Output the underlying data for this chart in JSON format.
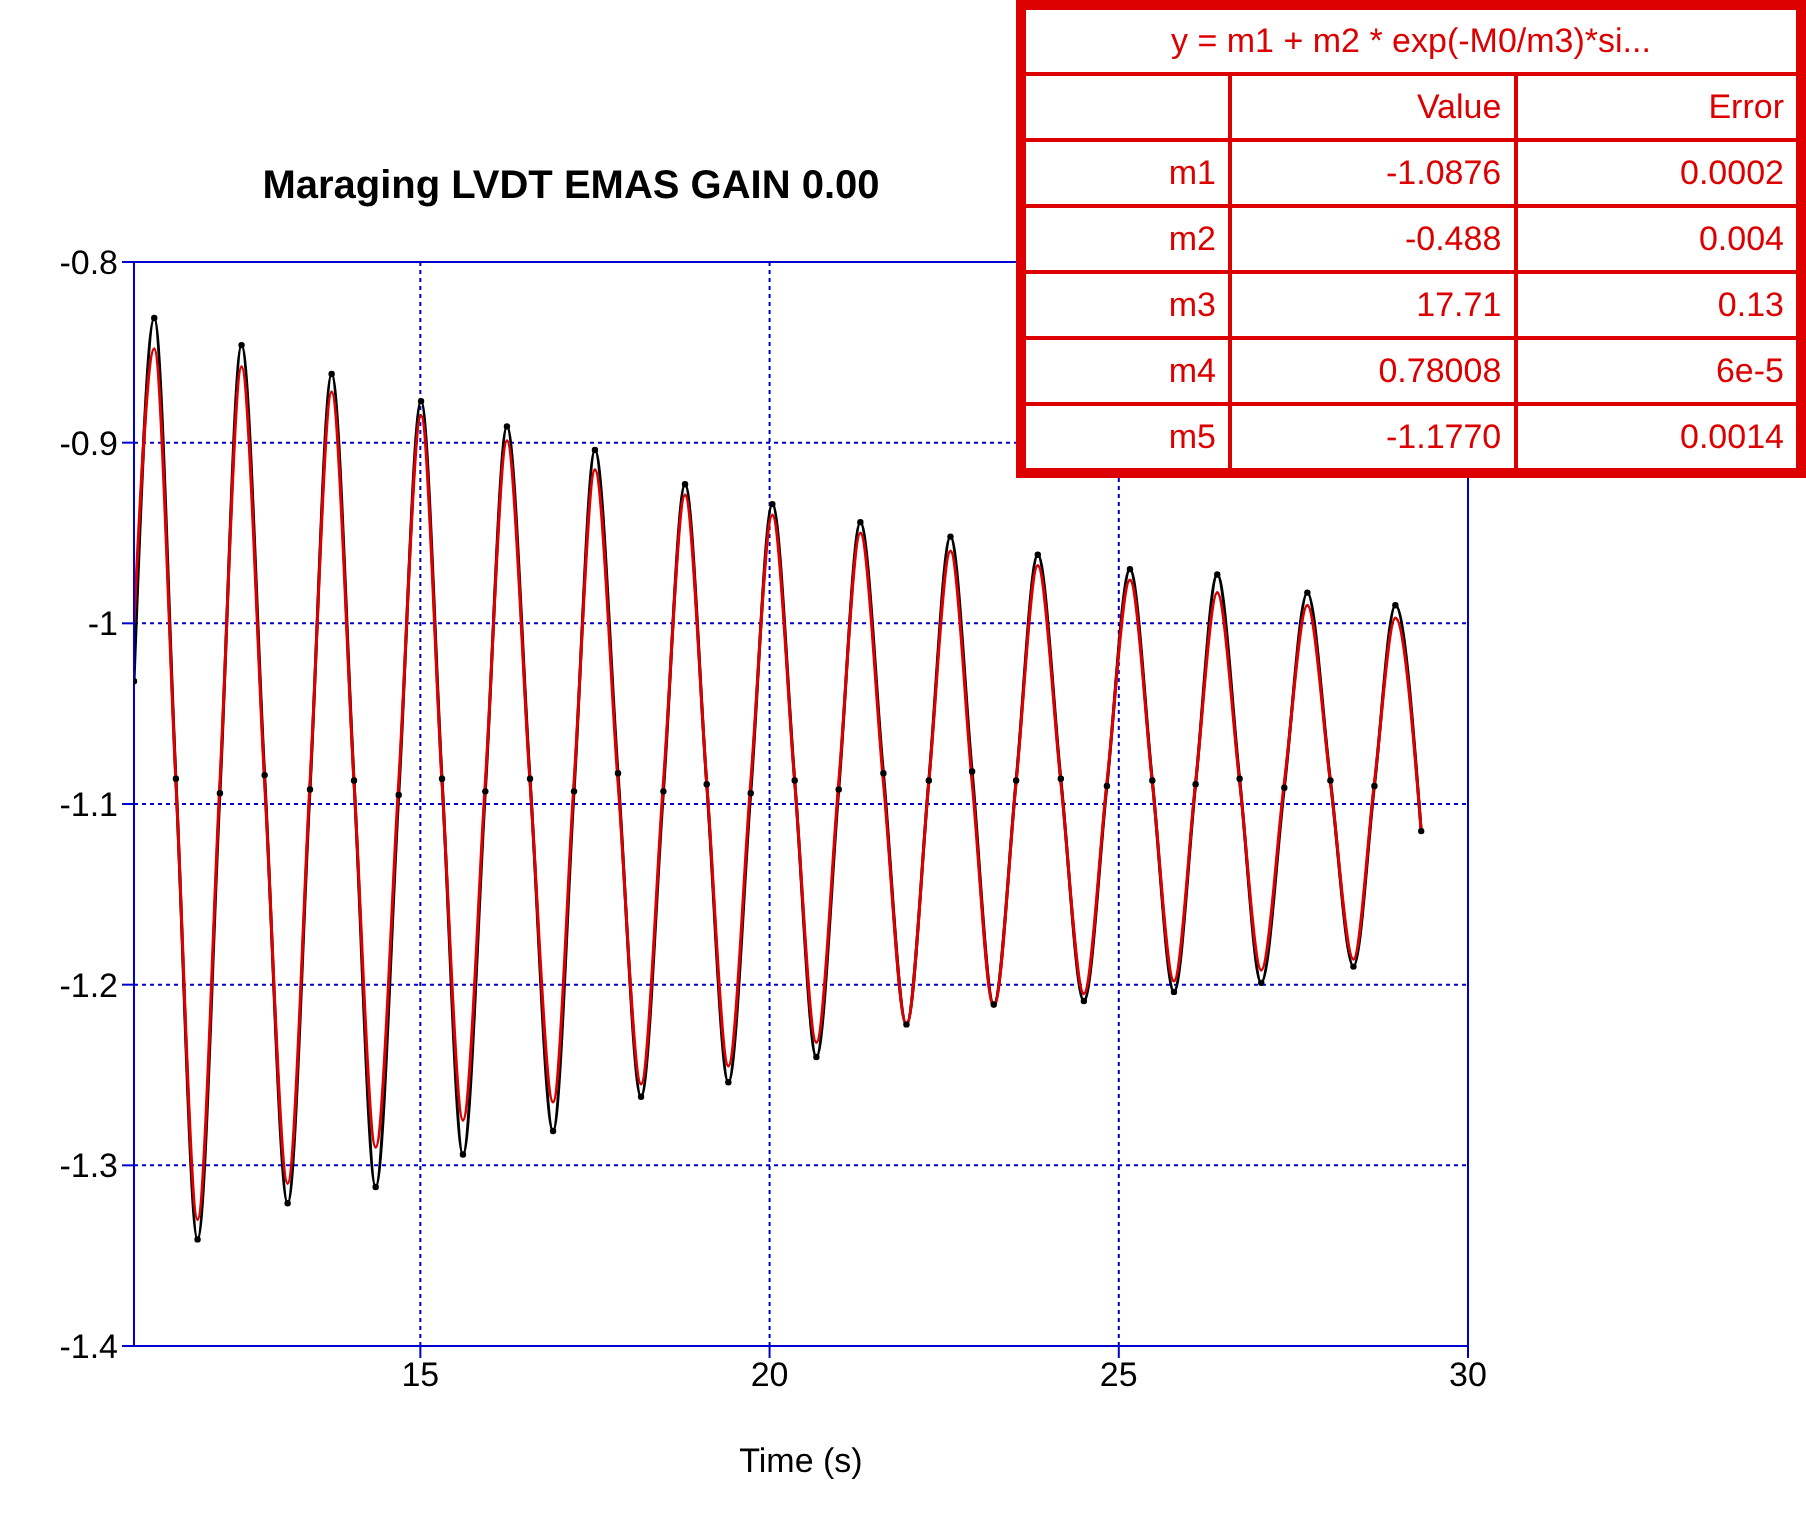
{
  "chart_data": {
    "type": "line",
    "title": "Maraging LVDT EMAS GAIN 0.00",
    "xlabel": "Time (s)",
    "xlim": [
      10.9,
      30
    ],
    "xticks": [
      15,
      20,
      25,
      30
    ],
    "ylim": [
      -1.4,
      -0.8
    ],
    "yticks": [
      -0.8,
      -0.9,
      -1,
      -1.1,
      -1.2,
      -1.3,
      -1.4
    ],
    "grid": true,
    "line_style": "solid",
    "annotations": [
      "y = m1 + m2 * exp(-M0/m3)*si...",
      "Value",
      "Error",
      "m1",
      "-1.0876",
      "0.0002",
      "m2",
      "-0.488",
      "0.004",
      "m3",
      "17.71",
      "0.13",
      "m4",
      "0.78008",
      "6e-5",
      "m5",
      "-1.1770",
      "0.0014"
    ],
    "series": [
      {
        "color": "#000000",
        "marker": "circle",
        "x": [
          10.9,
          11.19,
          11.5,
          11.81,
          12.13,
          12.44,
          12.77,
          13.1,
          13.42,
          13.73,
          14.05,
          14.36,
          14.69,
          15.01,
          15.31,
          15.61,
          15.93,
          16.24,
          16.57,
          16.9,
          17.2,
          17.5,
          17.83,
          18.16,
          18.48,
          18.79,
          19.1,
          19.41,
          19.73,
          20.04,
          20.36,
          20.67,
          20.99,
          21.3,
          21.63,
          21.96,
          22.28,
          22.59,
          22.9,
          23.21,
          23.53,
          23.84,
          24.17,
          24.5,
          24.83,
          25.16,
          25.48,
          25.79,
          26.1,
          26.41,
          26.73,
          27.04,
          27.37,
          27.7,
          28.03,
          28.36,
          28.66,
          28.96,
          29.33
        ],
        "values": [
          -1.032,
          -0.831,
          -1.086,
          -1.341,
          -1.094,
          -0.846,
          -1.084,
          -1.321,
          -1.092,
          -0.862,
          -1.087,
          -1.312,
          -1.095,
          -0.877,
          -1.086,
          -1.294,
          -1.093,
          -0.891,
          -1.086,
          -1.281,
          -1.093,
          -0.904,
          -1.083,
          -1.262,
          -1.093,
          -0.923,
          -1.089,
          -1.254,
          -1.094,
          -0.934,
          -1.087,
          -1.24,
          -1.092,
          -0.944,
          -1.083,
          -1.222,
          -1.087,
          -0.952,
          -1.082,
          -1.211,
          -1.087,
          -0.962,
          -1.086,
          -1.209,
          -1.09,
          -0.97,
          -1.087,
          -1.204,
          -1.089,
          -0.973,
          -1.086,
          -1.199,
          -1.091,
          -0.983,
          -1.087,
          -1.19,
          -1.09,
          -0.99,
          -1.115
        ]
      },
      {
        "color": "#dd0000",
        "marker": "none",
        "x": [
          10.9,
          11.19,
          11.5,
          11.81,
          12.13,
          12.44,
          12.77,
          13.1,
          13.42,
          13.73,
          14.05,
          14.36,
          14.69,
          15.01,
          15.31,
          15.61,
          15.93,
          16.24,
          16.57,
          16.9,
          17.2,
          17.5,
          17.83,
          18.16,
          18.48,
          18.79,
          19.1,
          19.41,
          19.73,
          20.04,
          20.36,
          20.67,
          20.99,
          21.3,
          21.63,
          21.96,
          22.28,
          22.59,
          22.9,
          23.21,
          23.53,
          23.84,
          24.17,
          24.5,
          24.83,
          25.16,
          25.48,
          25.79,
          26.1,
          26.41,
          26.73,
          27.04,
          27.37,
          27.7,
          28.03,
          28.36,
          28.66,
          28.96,
          29.33
        ],
        "values": [
          -1.0,
          -0.848,
          -1.088,
          -1.33,
          -1.088,
          -0.858,
          -1.088,
          -1.31,
          -1.088,
          -0.872,
          -1.088,
          -1.29,
          -1.088,
          -0.885,
          -1.088,
          -1.275,
          -1.088,
          -0.899,
          -1.088,
          -1.265,
          -1.088,
          -0.915,
          -1.088,
          -1.255,
          -1.088,
          -0.929,
          -1.088,
          -1.245,
          -1.088,
          -0.94,
          -1.088,
          -1.232,
          -1.088,
          -0.95,
          -1.088,
          -1.222,
          -1.088,
          -0.96,
          -1.088,
          -1.212,
          -1.088,
          -0.968,
          -1.088,
          -1.205,
          -1.088,
          -0.976,
          -1.088,
          -1.198,
          -1.088,
          -0.983,
          -1.088,
          -1.192,
          -1.088,
          -0.99,
          -1.088,
          -1.186,
          -1.088,
          -0.997,
          -1.115
        ]
      }
    ]
  }
}
